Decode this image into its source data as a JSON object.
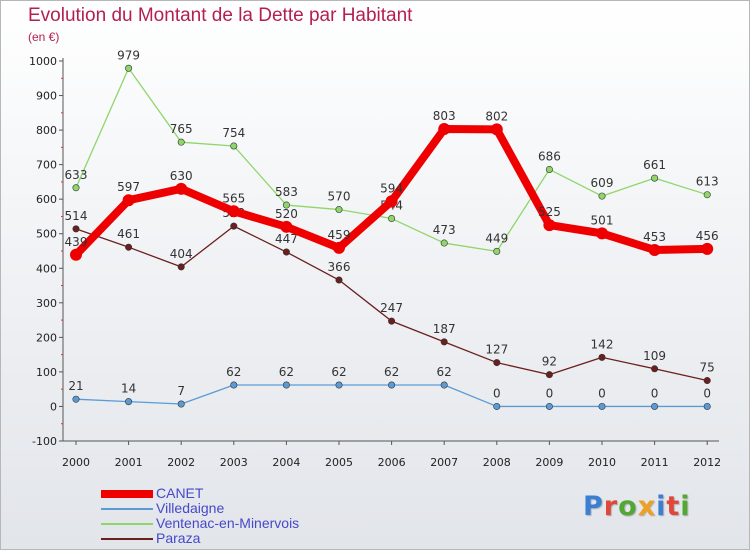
{
  "title": "Evolution du Montant de la Dette par Habitant",
  "unit": "(en €)",
  "logo": {
    "text": "Proxiti",
    "colors": [
      "#3a7fd1",
      "#e0463a",
      "#52a832",
      "#f0a020",
      "#3a7fd1",
      "#e0463a",
      "#52a832"
    ]
  },
  "chart_data": {
    "type": "line",
    "x": [
      "2000",
      "2001",
      "2002",
      "2003",
      "2004",
      "2005",
      "2006",
      "2007",
      "2008",
      "2009",
      "2010",
      "2011",
      "2012"
    ],
    "ylim": [
      -100,
      1000
    ],
    "yticks": [
      -100,
      0,
      100,
      200,
      300,
      400,
      500,
      600,
      700,
      800,
      900,
      1000
    ],
    "grid": false,
    "legend_position": "bottom-left",
    "series": [
      {
        "name": "CANET",
        "color": "#ee0000",
        "values": [
          439,
          597,
          630,
          565,
          520,
          459,
          594,
          803,
          802,
          525,
          501,
          453,
          456
        ]
      },
      {
        "name": "Villedaigne",
        "color": "#5b9bd5",
        "values": [
          21,
          14,
          7,
          62,
          62,
          62,
          62,
          62,
          0,
          0,
          0,
          0,
          0
        ]
      },
      {
        "name": "Ventenac-en-Minervois",
        "color": "#8fd66a",
        "values": [
          633,
          979,
          765,
          754,
          583,
          570,
          544,
          473,
          449,
          686,
          609,
          661,
          613
        ]
      },
      {
        "name": "Paraza",
        "color": "#6b1f1f",
        "values": [
          514,
          461,
          404,
          522,
          447,
          366,
          247,
          187,
          127,
          92,
          142,
          109,
          75
        ]
      }
    ]
  }
}
